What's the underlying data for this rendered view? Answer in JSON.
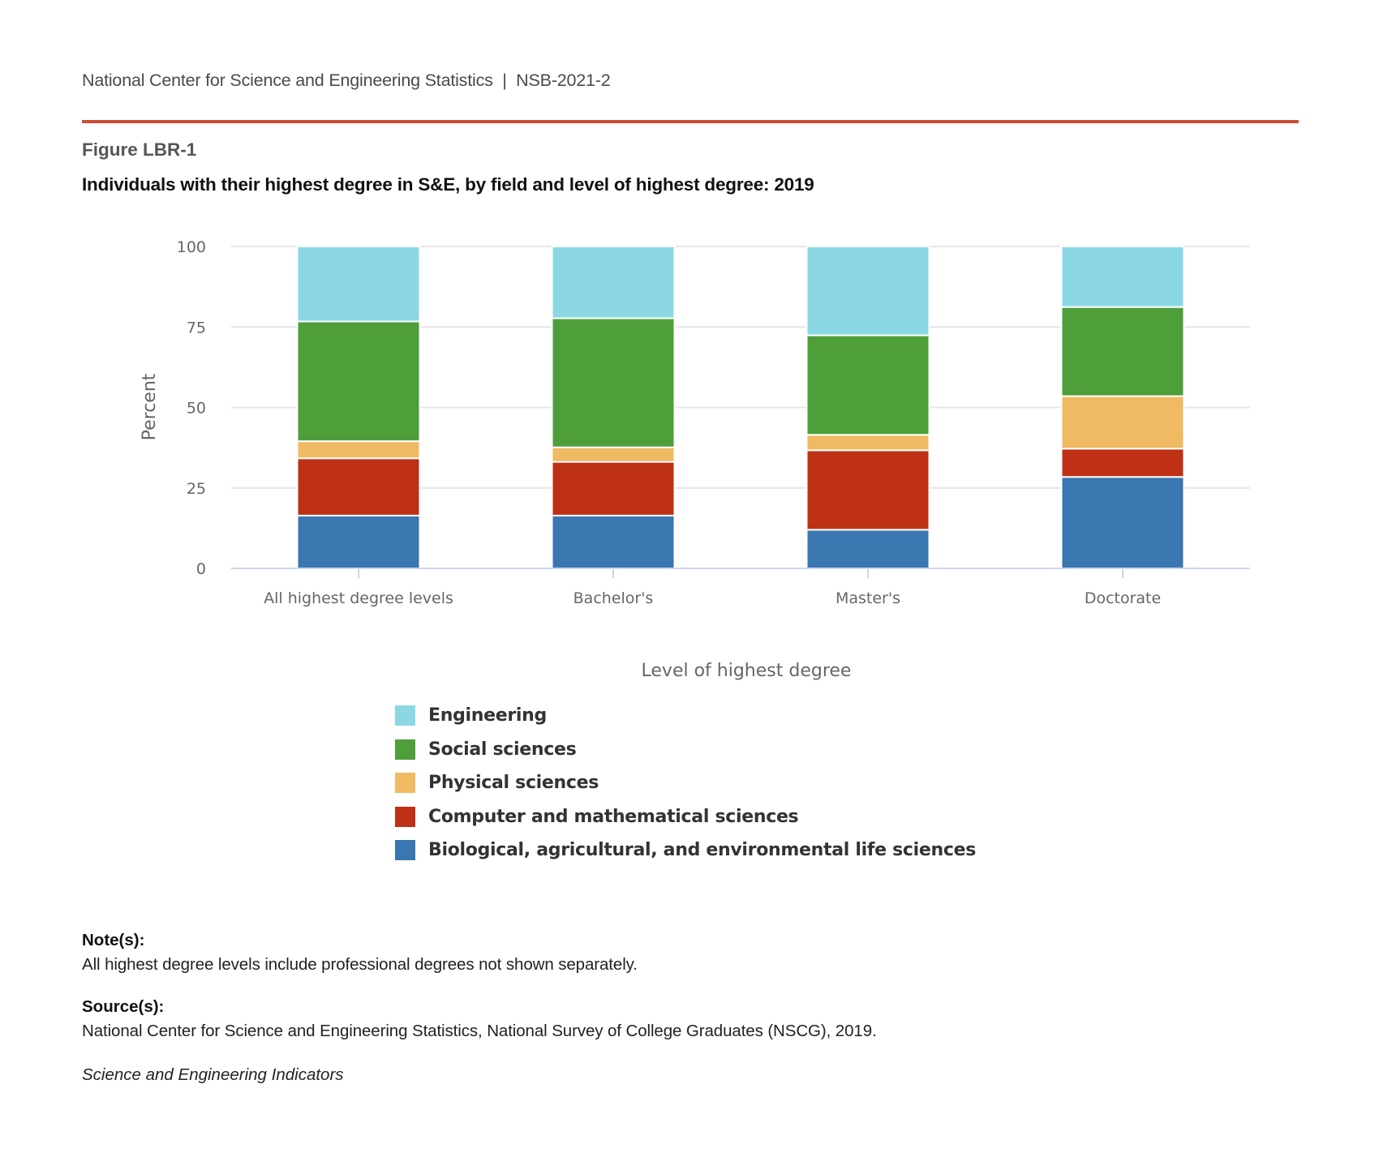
{
  "header": {
    "org": "National Center for Science and Engineering Statistics",
    "separator": "|",
    "report_id": "NSB-2021-2"
  },
  "figure": {
    "label": "Figure LBR-1",
    "title": "Individuals with their highest degree in S&E, by field and level of highest degree: 2019"
  },
  "colors": {
    "accent_rule": "#cc4e35",
    "Engineering": "#8bd8e4",
    "Social sciences": "#4e9e3a",
    "Physical sciences": "#f0ba62",
    "Computer and mathematical sciences": "#be3114",
    "Biological, agricultural, and environmental life sciences": "#3a76b0"
  },
  "chart_data": {
    "type": "bar",
    "stacked": true,
    "title": "Individuals with their highest degree in S&E, by field and level of highest degree: 2019",
    "xlabel": "Level of highest degree",
    "ylabel": "Percent",
    "ylim": [
      0,
      100
    ],
    "yticks": [
      0,
      25,
      50,
      75,
      100
    ],
    "grid": true,
    "legend_position": "bottom-center",
    "categories": [
      "All highest degree levels",
      "Bachelor's",
      "Master's",
      "Doctorate"
    ],
    "series": [
      {
        "name": "Biological, agricultural, and environmental life sciences",
        "values": [
          16.4,
          16.4,
          12.0,
          28.4
        ]
      },
      {
        "name": "Computer and mathematical sciences",
        "values": [
          17.8,
          16.7,
          24.7,
          8.8
        ]
      },
      {
        "name": "Physical sciences",
        "values": [
          5.3,
          4.5,
          4.8,
          16.3
        ]
      },
      {
        "name": "Social sciences",
        "values": [
          37.2,
          40.1,
          30.9,
          27.7
        ]
      },
      {
        "name": "Engineering",
        "values": [
          23.3,
          22.3,
          27.6,
          18.8
        ]
      }
    ],
    "legend_order": [
      "Engineering",
      "Social sciences",
      "Physical sciences",
      "Computer and mathematical sciences",
      "Biological, agricultural, and environmental life sciences"
    ]
  },
  "notes": {
    "note_heading": "Note(s):",
    "note_text": "All highest degree levels include professional degrees not shown separately.",
    "source_heading": "Source(s):",
    "source_text": "National Center for Science and Engineering Statistics, National Survey of College Graduates (NSCG), 2019.",
    "publication": "Science and Engineering Indicators"
  }
}
